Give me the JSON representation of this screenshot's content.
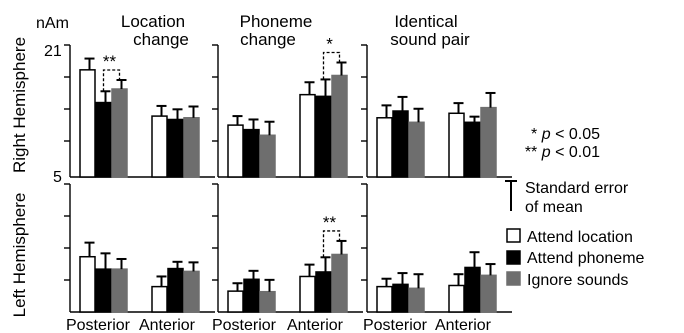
{
  "chart_data": {
    "type": "bar",
    "unit_label": "nAm",
    "y_tick_labels": [
      "21",
      "5"
    ],
    "ylim": [
      5,
      21
    ],
    "rows": [
      {
        "label": "Right Hemisphere"
      },
      {
        "label": "Left Hemisphere"
      }
    ],
    "columns": [
      {
        "title_lines": [
          "Location",
          "change"
        ]
      },
      {
        "title_lines": [
          "Phoneme",
          "change"
        ]
      },
      {
        "title_lines": [
          "Identical",
          "sound pair"
        ]
      }
    ],
    "categories": [
      "Posterior",
      "Anterior"
    ],
    "series": [
      {
        "name": "Attend location",
        "color": "#ffffff"
      },
      {
        "name": "Attend phoneme",
        "color": "#000000"
      },
      {
        "name": "Ignore sounds",
        "color": "#6e6e6e"
      }
    ],
    "legend_placement": "right",
    "panels": [
      {
        "row": 0,
        "col": 0,
        "values": [
          [
            19,
            13.2,
            15.6
          ],
          [
            10.8,
            10.2,
            10.5
          ]
        ],
        "errors": [
          [
            2,
            2,
            1.6
          ],
          [
            1.8,
            1.8,
            2
          ]
        ]
      },
      {
        "row": 0,
        "col": 1,
        "values": [
          [
            9.2,
            8.4,
            7.4
          ],
          [
            14.6,
            14.3,
            18
          ]
        ],
        "errors": [
          [
            1.6,
            1.8,
            2.4
          ],
          [
            2.2,
            3,
            2.3
          ]
        ]
      },
      {
        "row": 0,
        "col": 2,
        "values": [
          [
            10.5,
            11.7,
            9.7
          ],
          [
            11.3,
            9.7,
            12.3
          ]
        ],
        "errors": [
          [
            2.2,
            2.5,
            2.4
          ],
          [
            1.8,
            1,
            2.6
          ]
        ]
      },
      {
        "row": 1,
        "col": 0,
        "values": [
          [
            9.8,
            7.6,
            7.6
          ],
          [
            4.5,
            7.7,
            7.2
          ]
        ],
        "errors": [
          [
            2.5,
            2.8,
            1.8
          ],
          [
            1.8,
            1.2,
            1.6
          ]
        ]
      },
      {
        "row": 1,
        "col": 1,
        "values": [
          [
            3.7,
            5.8,
            3.6
          ],
          [
            6.3,
            7.1,
            10.2
          ]
        ],
        "errors": [
          [
            1.4,
            1.5,
            2.1
          ],
          [
            2.1,
            2.6,
            2.4
          ]
        ]
      },
      {
        "row": 1,
        "col": 2,
        "values": [
          [
            4.5,
            4.9,
            4.2
          ],
          [
            4.7,
            7.9,
            6.5
          ]
        ],
        "errors": [
          [
            1.4,
            2,
            2.5
          ],
          [
            2,
            2.7,
            2
          ]
        ]
      }
    ],
    "significance": [
      {
        "row": 0,
        "col": 0,
        "label": "**"
      },
      {
        "row": 0,
        "col": 1,
        "label": "*"
      },
      {
        "row": 1,
        "col": 1,
        "label": "**"
      }
    ],
    "notes": {
      "p05": {
        "stars": "*",
        "p": "p",
        "rest": " < 0.05"
      },
      "p01": {
        "stars": "**",
        "p": "p",
        "rest": " < 0.01"
      },
      "std_error_lines": [
        "Standard error",
        "of mean"
      ]
    }
  }
}
